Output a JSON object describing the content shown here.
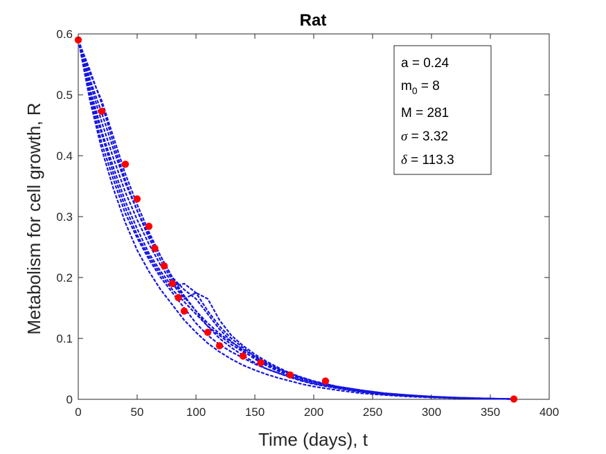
{
  "chart_data": {
    "type": "scatter",
    "title": "Rat",
    "xlabel": "Time (days), t",
    "ylabel": "Metabolism for cell growth, R",
    "xlim": [
      0,
      400
    ],
    "ylim": [
      0,
      0.6
    ],
    "x_ticks": [
      0,
      50,
      100,
      150,
      200,
      250,
      300,
      350,
      400
    ],
    "x_tick_labels": [
      "0",
      "50",
      "100",
      "150",
      "200",
      "250",
      "300",
      "350",
      "400"
    ],
    "y_ticks": [
      0,
      0.1,
      0.2,
      0.3,
      0.4,
      0.5,
      0.6
    ],
    "y_tick_labels": [
      "0",
      "0.1",
      "0.2",
      "0.3",
      "0.4",
      "0.5",
      "0.6"
    ],
    "grid": false,
    "colors": {
      "simulations": "#1515e0",
      "observed": "#ff0000"
    },
    "series": [
      {
        "kind": "dashed-lines",
        "x": [
          0,
          10,
          20,
          30,
          40,
          50,
          60,
          70,
          80,
          90,
          100,
          110,
          120,
          130,
          140,
          150,
          160,
          170,
          180,
          190,
          200,
          220,
          240,
          260,
          280,
          300,
          320,
          340,
          370
        ],
        "runs": [
          [
            0.59,
            0.525,
            0.47,
            0.41,
            0.355,
            0.31,
            0.27,
            0.235,
            0.2,
            0.17,
            0.145,
            0.12,
            0.1,
            0.085,
            0.072,
            0.06,
            0.05,
            0.043,
            0.037,
            0.031,
            0.026,
            0.019,
            0.013,
            0.009,
            0.006,
            0.004,
            0.0025,
            0.0015,
            0.0005
          ],
          [
            0.59,
            0.51,
            0.44,
            0.38,
            0.325,
            0.28,
            0.24,
            0.21,
            0.185,
            0.19,
            0.175,
            0.145,
            0.12,
            0.1,
            0.085,
            0.07,
            0.058,
            0.048,
            0.04,
            0.034,
            0.029,
            0.021,
            0.015,
            0.01,
            0.007,
            0.0045,
            0.003,
            0.0018,
            0.0005
          ],
          [
            0.59,
            0.5,
            0.42,
            0.36,
            0.305,
            0.265,
            0.23,
            0.2,
            0.175,
            0.15,
            0.125,
            0.105,
            0.09,
            0.078,
            0.068,
            0.058,
            0.05,
            0.043,
            0.036,
            0.03,
            0.025,
            0.018,
            0.012,
            0.008,
            0.0055,
            0.0035,
            0.002,
            0.0012,
            0.0005
          ],
          [
            0.59,
            0.535,
            0.49,
            0.43,
            0.37,
            0.32,
            0.275,
            0.235,
            0.2,
            0.18,
            0.165,
            0.14,
            0.115,
            0.095,
            0.08,
            0.066,
            0.055,
            0.046,
            0.039,
            0.033,
            0.028,
            0.02,
            0.014,
            0.0095,
            0.0065,
            0.004,
            0.0025,
            0.0015,
            0.0005
          ],
          [
            0.59,
            0.49,
            0.41,
            0.345,
            0.29,
            0.245,
            0.21,
            0.18,
            0.155,
            0.13,
            0.11,
            0.092,
            0.078,
            0.066,
            0.056,
            0.048,
            0.041,
            0.035,
            0.03,
            0.025,
            0.021,
            0.015,
            0.01,
            0.007,
            0.0045,
            0.003,
            0.0018,
            0.001,
            0.0005
          ],
          [
            0.59,
            0.52,
            0.455,
            0.395,
            0.34,
            0.295,
            0.255,
            0.22,
            0.19,
            0.165,
            0.175,
            0.165,
            0.13,
            0.105,
            0.088,
            0.074,
            0.062,
            0.052,
            0.043,
            0.036,
            0.03,
            0.021,
            0.015,
            0.01,
            0.007,
            0.0045,
            0.003,
            0.0018,
            0.0005
          ],
          [
            0.59,
            0.505,
            0.435,
            0.37,
            0.315,
            0.27,
            0.235,
            0.205,
            0.18,
            0.16,
            0.14,
            0.12,
            0.105,
            0.09,
            0.078,
            0.068,
            0.058,
            0.05,
            0.042,
            0.035,
            0.029,
            0.02,
            0.014,
            0.0095,
            0.0065,
            0.004,
            0.0025,
            0.0015,
            0.0005
          ],
          [
            0.59,
            0.54,
            0.485,
            0.42,
            0.36,
            0.31,
            0.265,
            0.228,
            0.195,
            0.168,
            0.145,
            0.125,
            0.108,
            0.094,
            0.082,
            0.071,
            0.06,
            0.05,
            0.042,
            0.035,
            0.029,
            0.021,
            0.015,
            0.01,
            0.0068,
            0.0042,
            0.0026,
            0.0016,
            0.0005
          ]
        ]
      },
      {
        "kind": "observed-points",
        "x": [
          0,
          20,
          40,
          50,
          60,
          65,
          73,
          80,
          85,
          90,
          110,
          120,
          140,
          155,
          180,
          210,
          370
        ],
        "y": [
          0.59,
          0.473,
          0.386,
          0.329,
          0.284,
          0.248,
          0.219,
          0.19,
          0.167,
          0.145,
          0.11,
          0.088,
          0.071,
          0.06,
          0.04,
          0.03,
          0.0005
        ]
      }
    ],
    "annotation_box": {
      "a_text": "a = 0.24",
      "m_base": "m",
      "m_sub": "0",
      "m_rest": " = 8",
      "M_text": "M = 281",
      "sigma_symbol": "σ",
      "sigma_rest": " = 3.32",
      "delta_symbol": "δ",
      "delta_rest": " = 113.3"
    }
  }
}
